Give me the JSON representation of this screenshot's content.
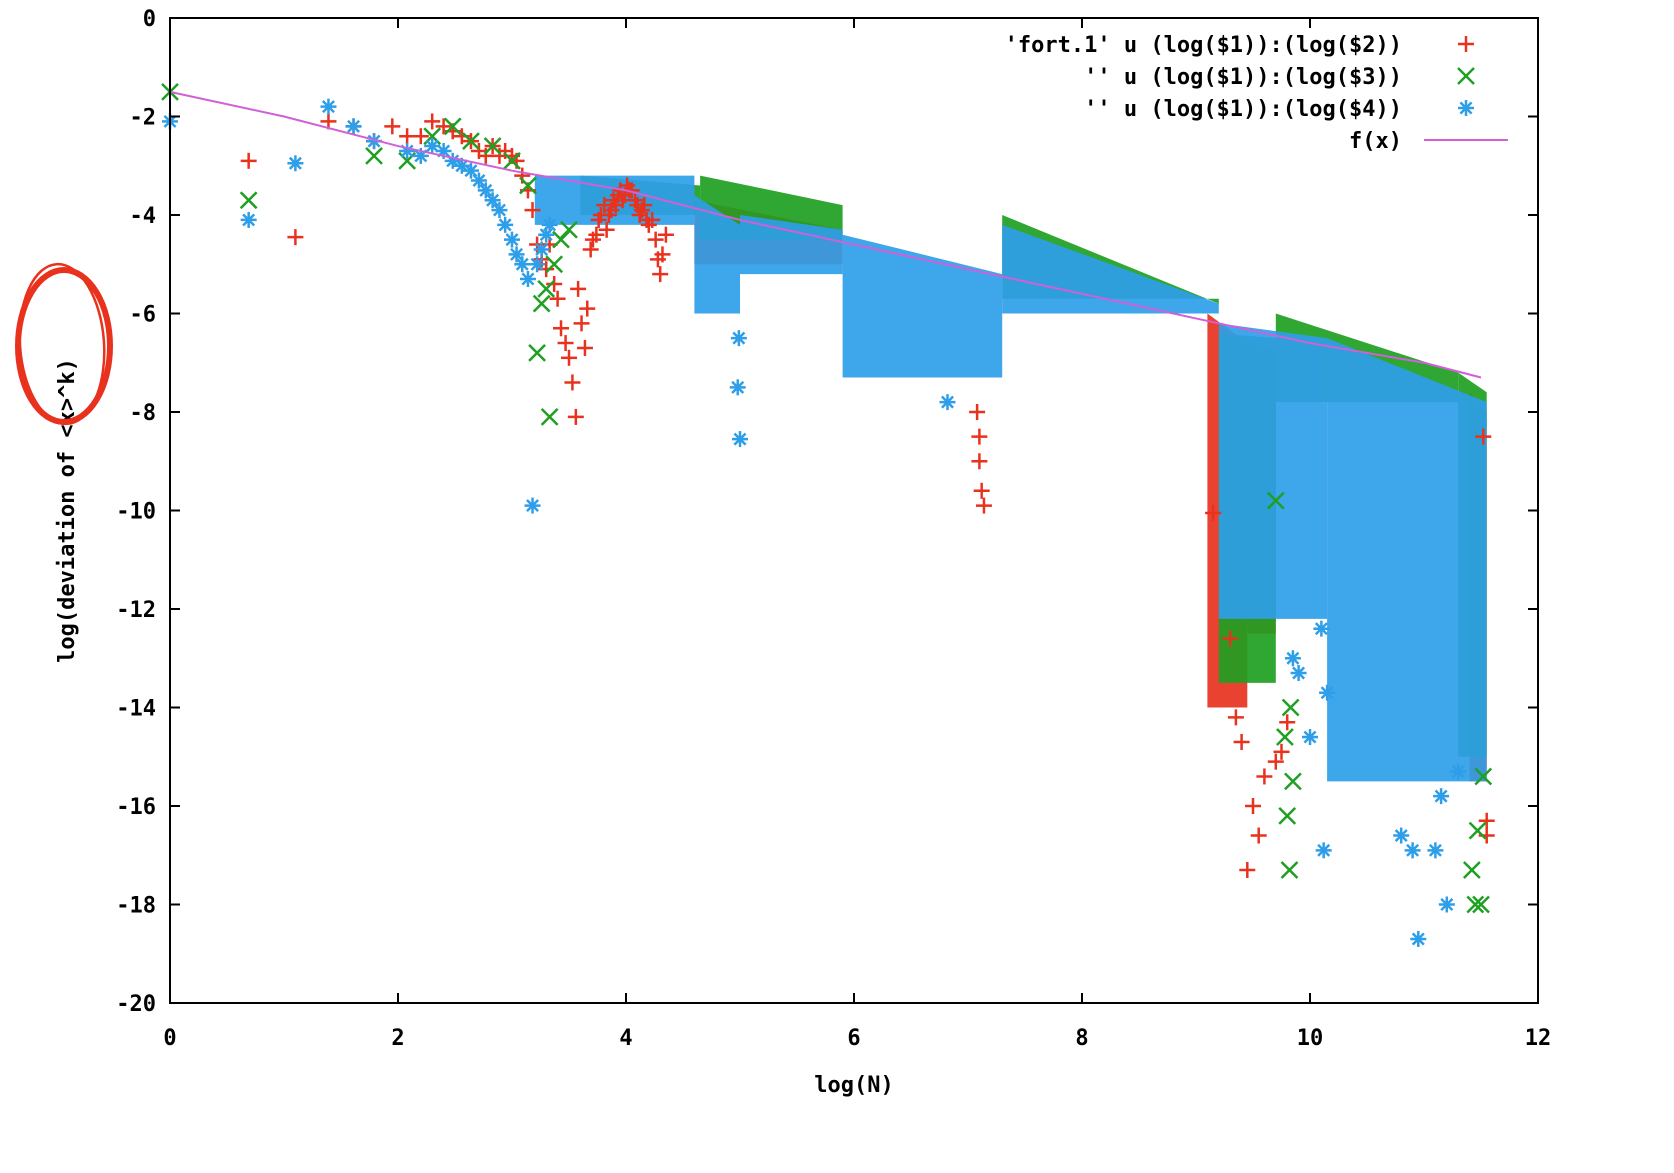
{
  "chart_data": {
    "type": "scatter",
    "title": "",
    "xlabel": "log(N)",
    "ylabel": "log(deviation of <x>^k)",
    "xlim": [
      0,
      12
    ],
    "ylim": [
      -20,
      0
    ],
    "xticks": [
      "0",
      "2",
      "4",
      "6",
      "8",
      "10",
      "12"
    ],
    "yticks": [
      "0",
      "-2",
      "-4",
      "-6",
      "-8",
      "-10",
      "-12",
      "-14",
      "-16",
      "-18",
      "-20"
    ],
    "grid": false,
    "legend_position": "top-right",
    "annotation": {
      "shape": "hand-drawn circle",
      "target": "<x>^k",
      "color": "#e8321e"
    },
    "series": [
      {
        "name": "'fort.1' u (log($1)):(log($2))",
        "marker": "plus",
        "color": "#e8321e",
        "points": [
          [
            0.69,
            -2.9
          ],
          [
            1.1,
            -4.45
          ],
          [
            1.39,
            -2.1
          ],
          [
            1.61,
            -2.2
          ],
          [
            1.79,
            -2.5
          ],
          [
            1.95,
            -2.2
          ],
          [
            2.08,
            -2.4
          ],
          [
            2.2,
            -2.4
          ],
          [
            2.3,
            -2.1
          ],
          [
            2.4,
            -2.2
          ],
          [
            2.48,
            -2.3
          ],
          [
            2.56,
            -2.4
          ],
          [
            2.64,
            -2.5
          ],
          [
            2.71,
            -2.7
          ],
          [
            2.77,
            -2.8
          ],
          [
            2.83,
            -2.6
          ],
          [
            2.89,
            -2.8
          ],
          [
            2.94,
            -2.7
          ],
          [
            3.0,
            -2.8
          ],
          [
            3.04,
            -2.9
          ],
          [
            3.09,
            -3.2
          ],
          [
            3.14,
            -3.5
          ],
          [
            3.18,
            -3.9
          ],
          [
            3.22,
            -4.6
          ],
          [
            3.26,
            -4.9
          ],
          [
            3.3,
            -5.1
          ],
          [
            3.33,
            -4.6
          ],
          [
            3.37,
            -5.4
          ],
          [
            3.4,
            -5.7
          ],
          [
            3.43,
            -6.3
          ],
          [
            3.47,
            -6.6
          ],
          [
            3.5,
            -6.9
          ],
          [
            3.53,
            -7.4
          ],
          [
            3.56,
            -8.1
          ],
          [
            3.58,
            -5.5
          ],
          [
            3.61,
            -6.2
          ],
          [
            3.64,
            -6.7
          ],
          [
            3.66,
            -5.9
          ],
          [
            3.69,
            -4.7
          ],
          [
            3.71,
            -4.5
          ],
          [
            3.74,
            -4.4
          ],
          [
            3.76,
            -4.1
          ],
          [
            3.78,
            -4.0
          ],
          [
            3.81,
            -3.8
          ],
          [
            3.83,
            -4.3
          ],
          [
            3.85,
            -4.0
          ],
          [
            3.87,
            -3.9
          ],
          [
            3.89,
            -3.7
          ],
          [
            3.91,
            -3.8
          ],
          [
            3.93,
            -3.6
          ],
          [
            3.95,
            -3.5
          ],
          [
            3.97,
            -3.7
          ],
          [
            3.99,
            -3.6
          ],
          [
            4.01,
            -3.4
          ],
          [
            4.03,
            -3.5
          ],
          [
            4.05,
            -3.5
          ],
          [
            4.08,
            -3.7
          ],
          [
            4.1,
            -3.8
          ],
          [
            4.12,
            -4.0
          ],
          [
            4.14,
            -3.9
          ],
          [
            4.16,
            -3.8
          ],
          [
            4.18,
            -4.1
          ],
          [
            4.2,
            -4.2
          ],
          [
            4.23,
            -4.1
          ],
          [
            4.26,
            -4.5
          ],
          [
            4.28,
            -4.9
          ],
          [
            4.3,
            -5.2
          ],
          [
            4.32,
            -4.8
          ],
          [
            4.35,
            -4.4
          ],
          [
            9.15,
            -10.05
          ],
          [
            9.3,
            -12.6
          ],
          [
            9.35,
            -14.2
          ],
          [
            9.4,
            -14.7
          ],
          [
            9.45,
            -17.3
          ],
          [
            9.5,
            -16.0
          ],
          [
            9.55,
            -16.6
          ],
          [
            9.6,
            -15.4
          ],
          [
            9.7,
            -15.1
          ],
          [
            9.75,
            -14.9
          ],
          [
            9.8,
            -14.3
          ],
          [
            7.08,
            -8.0
          ],
          [
            7.1,
            -8.5
          ],
          [
            7.1,
            -9.0
          ],
          [
            7.12,
            -9.6
          ],
          [
            7.14,
            -9.9
          ],
          [
            11.55,
            -16.3
          ],
          [
            11.55,
            -16.6
          ],
          [
            11.52,
            -8.5
          ]
        ],
        "bands": [
          {
            "x_start": 4.6,
            "x_end": 5.9,
            "y_upper_start": -3.7,
            "y_upper_end": -4.3,
            "y_lower": -5.0
          },
          {
            "x_start": 9.1,
            "x_end": 9.45,
            "y_upper_start": -6.0,
            "y_upper_end": -6.6,
            "y_lower": -14.0
          },
          {
            "x_start": 9.45,
            "x_end": 9.7,
            "y_upper_start": -6.6,
            "y_upper_end": -6.7,
            "y_lower": -12.5
          },
          {
            "x_start": 11.4,
            "x_end": 11.55,
            "y_upper_start": -7.6,
            "y_upper_end": -8.0,
            "y_lower": -15.5
          }
        ]
      },
      {
        "name": "'' u (log($1)):(log($3))",
        "marker": "cross",
        "color": "#1fa022",
        "points": [
          [
            0.0,
            -1.5
          ],
          [
            0.69,
            -3.7
          ],
          [
            1.79,
            -2.8
          ],
          [
            2.08,
            -2.9
          ],
          [
            2.3,
            -2.4
          ],
          [
            2.48,
            -2.2
          ],
          [
            2.64,
            -2.5
          ],
          [
            2.83,
            -2.6
          ],
          [
            3.0,
            -2.9
          ],
          [
            3.14,
            -3.4
          ],
          [
            3.22,
            -6.8
          ],
          [
            3.26,
            -5.8
          ],
          [
            3.3,
            -5.5
          ],
          [
            3.33,
            -8.1
          ],
          [
            3.37,
            -5.0
          ],
          [
            3.43,
            -4.5
          ],
          [
            3.5,
            -4.3
          ],
          [
            9.7,
            -9.8
          ],
          [
            9.78,
            -14.6
          ],
          [
            9.8,
            -16.2
          ],
          [
            9.82,
            -17.3
          ],
          [
            9.85,
            -15.5
          ],
          [
            9.83,
            -14.0
          ],
          [
            11.42,
            -17.3
          ],
          [
            11.45,
            -18.0
          ],
          [
            11.5,
            -18.0
          ],
          [
            11.47,
            -16.5
          ],
          [
            11.52,
            -15.4
          ]
        ],
        "bands": [
          {
            "x_start": 3.6,
            "x_end": 4.65,
            "y_upper_start": -3.2,
            "y_upper_end": -3.4,
            "y_lower": -4.0
          },
          {
            "x_start": 4.65,
            "x_end": 5.9,
            "y_upper_start": -3.2,
            "y_upper_end": -3.8,
            "y_lower": -4.5
          },
          {
            "x_start": 7.3,
            "x_end": 9.2,
            "y_upper_start": -4.0,
            "y_upper_end": -5.8,
            "y_lower": -5.7
          },
          {
            "x_start": 9.2,
            "x_end": 9.7,
            "y_upper_start": -6.4,
            "y_upper_end": -6.5,
            "y_lower": -13.5
          },
          {
            "x_start": 9.7,
            "x_end": 11.3,
            "y_upper_start": -6.0,
            "y_upper_end": -7.2,
            "y_lower": -7.8
          },
          {
            "x_start": 11.3,
            "x_end": 11.55,
            "y_upper_start": -7.2,
            "y_upper_end": -7.6,
            "y_lower": -15.0
          }
        ]
      },
      {
        "name": "'' u (log($1)):(log($4))",
        "marker": "star",
        "color": "#2e9ee8",
        "points": [
          [
            0.0,
            -2.1
          ],
          [
            0.69,
            -4.1
          ],
          [
            1.1,
            -2.95
          ],
          [
            1.39,
            -1.8
          ],
          [
            1.61,
            -2.2
          ],
          [
            1.79,
            -2.5
          ],
          [
            2.08,
            -2.7
          ],
          [
            2.2,
            -2.8
          ],
          [
            2.3,
            -2.6
          ],
          [
            2.4,
            -2.7
          ],
          [
            2.48,
            -2.9
          ],
          [
            2.56,
            -3.0
          ],
          [
            2.64,
            -3.1
          ],
          [
            2.71,
            -3.3
          ],
          [
            2.77,
            -3.5
          ],
          [
            2.83,
            -3.7
          ],
          [
            2.89,
            -3.9
          ],
          [
            2.94,
            -4.2
          ],
          [
            3.0,
            -4.5
          ],
          [
            3.04,
            -4.8
          ],
          [
            3.09,
            -5.0
          ],
          [
            3.14,
            -5.3
          ],
          [
            3.18,
            -9.9
          ],
          [
            3.22,
            -5.0
          ],
          [
            3.26,
            -4.7
          ],
          [
            3.3,
            -4.4
          ],
          [
            3.33,
            -4.2
          ],
          [
            4.98,
            -7.5
          ],
          [
            5.0,
            -8.55
          ],
          [
            4.99,
            -6.5
          ],
          [
            6.82,
            -7.8
          ],
          [
            9.85,
            -13.0
          ],
          [
            9.9,
            -13.3
          ],
          [
            10.0,
            -14.6
          ],
          [
            10.1,
            -12.4
          ],
          [
            10.12,
            -16.9
          ],
          [
            10.15,
            -13.7
          ],
          [
            10.8,
            -16.6
          ],
          [
            10.9,
            -16.9
          ],
          [
            10.95,
            -18.7
          ],
          [
            11.2,
            -18.0
          ],
          [
            11.1,
            -16.9
          ],
          [
            11.15,
            -15.8
          ],
          [
            11.3,
            -15.3
          ]
        ],
        "bands": [
          {
            "x_start": 3.2,
            "x_end": 4.6,
            "y_upper_start": -3.2,
            "y_upper_end": -3.2,
            "y_lower": -4.2
          },
          {
            "x_start": 4.6,
            "x_end": 5.0,
            "y_upper_start": -3.6,
            "y_upper_end": -4.2,
            "y_lower": -6.0
          },
          {
            "x_start": 5.0,
            "x_end": 5.9,
            "y_upper_start": -4.0,
            "y_upper_end": -4.3,
            "y_lower": -5.2
          },
          {
            "x_start": 5.9,
            "x_end": 7.3,
            "y_upper_start": -4.4,
            "y_upper_end": -5.2,
            "y_lower": -7.3
          },
          {
            "x_start": 7.3,
            "x_end": 9.2,
            "y_upper_start": -4.2,
            "y_upper_end": -5.8,
            "y_lower": -6.0
          },
          {
            "x_start": 9.2,
            "x_end": 10.15,
            "y_upper_start": -6.2,
            "y_upper_end": -6.5,
            "y_lower": -12.2
          },
          {
            "x_start": 10.15,
            "x_end": 11.55,
            "y_upper_start": -6.5,
            "y_upper_end": -7.8,
            "y_lower": -15.5
          }
        ]
      }
    ],
    "fit_line": {
      "name": "f(x)",
      "color": "#d060d8",
      "points": [
        [
          0.0,
          -1.5
        ],
        [
          1.0,
          -2.0
        ],
        [
          2.0,
          -2.6
        ],
        [
          3.0,
          -3.1
        ],
        [
          4.0,
          -3.5
        ],
        [
          5.0,
          -4.1
        ],
        [
          6.0,
          -4.6
        ],
        [
          7.0,
          -5.1
        ],
        [
          8.0,
          -5.6
        ],
        [
          9.0,
          -6.1
        ],
        [
          10.0,
          -6.6
        ],
        [
          11.0,
          -7.0
        ],
        [
          11.5,
          -7.3
        ]
      ]
    }
  }
}
